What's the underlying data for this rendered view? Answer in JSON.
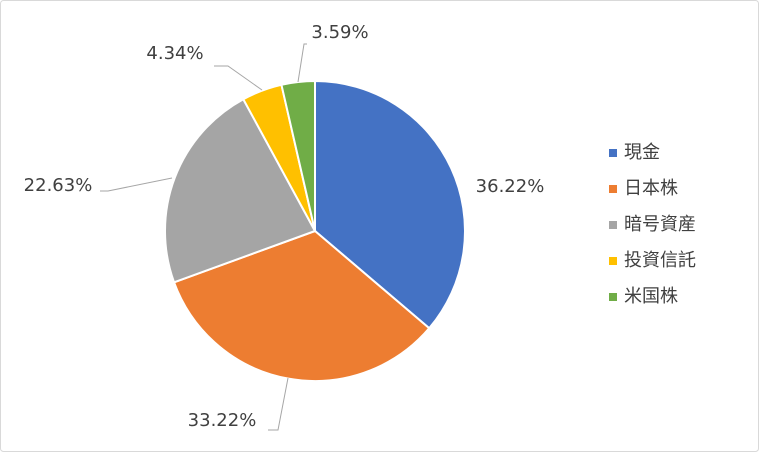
{
  "chart_data": {
    "type": "pie",
    "categories": [
      "現金",
      "日本株",
      "暗号資産",
      "投資信託",
      "米国株"
    ],
    "values": [
      36.22,
      33.22,
      22.63,
      4.34,
      3.59
    ],
    "value_labels": [
      "36.22%",
      "33.22%",
      "22.63%",
      "4.34%",
      "3.59%"
    ],
    "colors": [
      "#4472c4",
      "#ed7d31",
      "#a5a5a5",
      "#ffc000",
      "#70ad47"
    ],
    "legend": "right"
  }
}
